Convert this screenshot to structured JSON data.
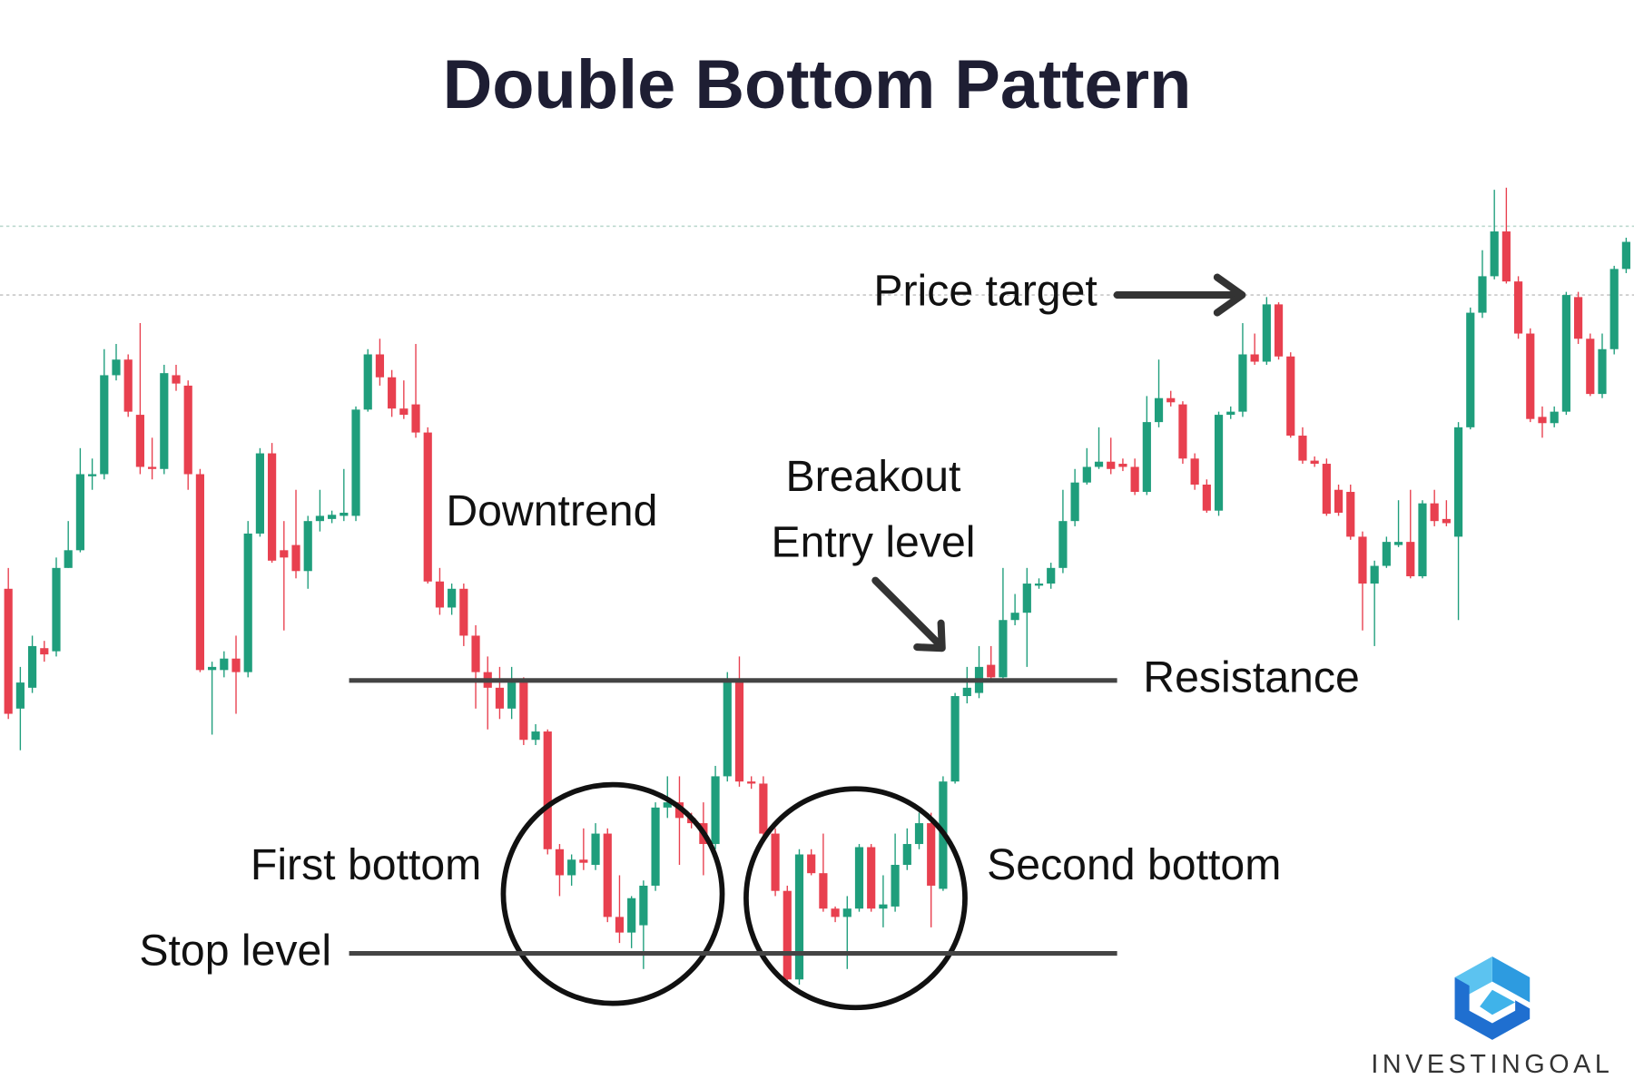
{
  "chart_data": {
    "type": "candlestick",
    "title": "Double Bottom Pattern",
    "up_color": "#1f9e7c",
    "down_color": "#e8404f",
    "ylim": [
      0,
      1000
    ],
    "open": [
      435,
      320,
      340,
      378,
      375,
      455,
      472,
      545,
      545,
      640,
      655,
      602,
      552,
      550,
      640,
      630,
      545,
      357,
      357,
      368,
      355,
      488,
      565,
      472,
      477,
      452,
      500,
      502,
      505,
      505,
      607,
      660,
      638,
      608,
      612,
      585,
      442,
      417,
      435,
      390,
      355,
      340,
      320,
      345,
      290,
      298,
      185,
      160,
      175,
      170,
      200,
      120,
      105,
      112,
      150,
      225,
      230,
      215,
      210,
      190,
      255,
      348,
      250,
      248,
      200,
      145,
      60,
      180,
      162,
      128,
      120,
      128,
      187,
      128,
      130,
      170,
      190,
      210,
      147,
      250,
      332,
      335,
      362,
      350,
      405,
      412,
      438,
      440,
      455,
      500,
      537,
      552,
      557,
      555,
      552,
      528,
      595,
      618,
      612,
      560,
      535,
      510,
      602,
      605,
      660,
      653,
      708,
      658,
      582,
      558,
      555,
      530,
      528,
      485,
      440,
      457,
      477,
      480,
      447,
      517,
      502,
      485,
      590,
      700,
      735,
      778,
      730,
      680,
      600,
      594,
      605,
      715,
      675,
      622,
      665,
      742
    ],
    "high": [
      455,
      360,
      390,
      385,
      465,
      500,
      570,
      560,
      665,
      670,
      660,
      690,
      580,
      650,
      650,
      635,
      550,
      365,
      375,
      390,
      500,
      570,
      575,
      500,
      530,
      505,
      530,
      510,
      550,
      610,
      665,
      675,
      645,
      635,
      670,
      590,
      455,
      440,
      440,
      400,
      370,
      360,
      360,
      350,
      305,
      300,
      190,
      180,
      205,
      210,
      205,
      160,
      140,
      155,
      230,
      255,
      255,
      220,
      230,
      265,
      355,
      370,
      255,
      255,
      205,
      150,
      185,
      185,
      200,
      130,
      140,
      190,
      190,
      160,
      200,
      205,
      220,
      220,
      255,
      335,
      360,
      380,
      380,
      455,
      430,
      455,
      445,
      460,
      530,
      550,
      570,
      590,
      580,
      560,
      560,
      620,
      655,
      625,
      615,
      565,
      540,
      605,
      610,
      690,
      680,
      715,
      710,
      662,
      590,
      562,
      560,
      535,
      535,
      490,
      462,
      485,
      520,
      530,
      520,
      530,
      520,
      595,
      705,
      760,
      818,
      820,
      735,
      685,
      610,
      610,
      720,
      720,
      680,
      680,
      745,
      772
    ],
    "low": [
      310,
      280,
      335,
      365,
      370,
      455,
      470,
      530,
      540,
      635,
      600,
      545,
      540,
      545,
      625,
      530,
      355,
      295,
      350,
      315,
      350,
      485,
      460,
      395,
      445,
      435,
      490,
      498,
      500,
      500,
      605,
      630,
      600,
      598,
      580,
      440,
      410,
      410,
      380,
      320,
      300,
      310,
      310,
      285,
      285,
      180,
      140,
      150,
      165,
      165,
      115,
      95,
      90,
      70,
      145,
      215,
      170,
      205,
      160,
      185,
      250,
      245,
      243,
      195,
      140,
      55,
      55,
      160,
      125,
      115,
      70,
      125,
      125,
      110,
      125,
      165,
      185,
      110,
      145,
      248,
      325,
      330,
      345,
      348,
      400,
      360,
      435,
      435,
      450,
      495,
      535,
      550,
      545,
      548,
      525,
      525,
      590,
      610,
      555,
      530,
      508,
      505,
      598,
      600,
      650,
      650,
      655,
      580,
      555,
      552,
      505,
      505,
      482,
      395,
      380,
      455,
      475,
      445,
      445,
      495,
      495,
      405,
      588,
      695,
      732,
      728,
      675,
      595,
      580,
      590,
      602,
      670,
      620,
      618,
      660,
      738
    ],
    "close": [
      315,
      345,
      380,
      372,
      455,
      472,
      545,
      545,
      640,
      655,
      605,
      552,
      550,
      642,
      632,
      545,
      357,
      360,
      368,
      355,
      488,
      565,
      462,
      465,
      452,
      500,
      505,
      506,
      508,
      607,
      660,
      638,
      608,
      602,
      585,
      442,
      417,
      435,
      390,
      355,
      340,
      320,
      345,
      290,
      298,
      185,
      160,
      175,
      172,
      200,
      120,
      105,
      138,
      150,
      225,
      230,
      215,
      210,
      190,
      255,
      348,
      250,
      248,
      200,
      145,
      60,
      180,
      162,
      128,
      120,
      128,
      187,
      128,
      132,
      170,
      190,
      210,
      150,
      250,
      332,
      340,
      360,
      350,
      405,
      412,
      440,
      440,
      455,
      500,
      537,
      552,
      557,
      550,
      552,
      528,
      595,
      618,
      614,
      560,
      535,
      510,
      602,
      605,
      660,
      653,
      708,
      658,
      582,
      558,
      555,
      507,
      508,
      485,
      440,
      457,
      480,
      480,
      447,
      517,
      500,
      498,
      590,
      700,
      735,
      778,
      730,
      680,
      598,
      594,
      605,
      717,
      675,
      622,
      665,
      742,
      768
    ],
    "levels": [
      {
        "name": "Resistance",
        "value": 347
      },
      {
        "name": "Stop level",
        "value": 85
      }
    ],
    "dotted_lines": [
      783,
      717
    ],
    "annotations": [
      "Price target",
      "Downtrend",
      "Breakout",
      "Entry level",
      "First bottom",
      "Second bottom"
    ],
    "brand": "INVESTINGOAL"
  }
}
